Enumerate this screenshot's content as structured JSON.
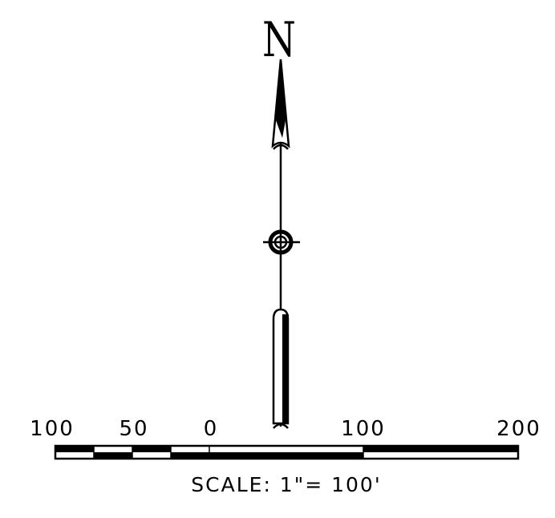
{
  "north_arrow": {
    "letter": "N"
  },
  "scale_bar": {
    "tick_labels": [
      "100",
      "50",
      "0",
      "100",
      "200"
    ],
    "scale_text": "SCALE: 1\"= 100'"
  },
  "colors": {
    "ink": "#000000",
    "paper": "#ffffff"
  }
}
